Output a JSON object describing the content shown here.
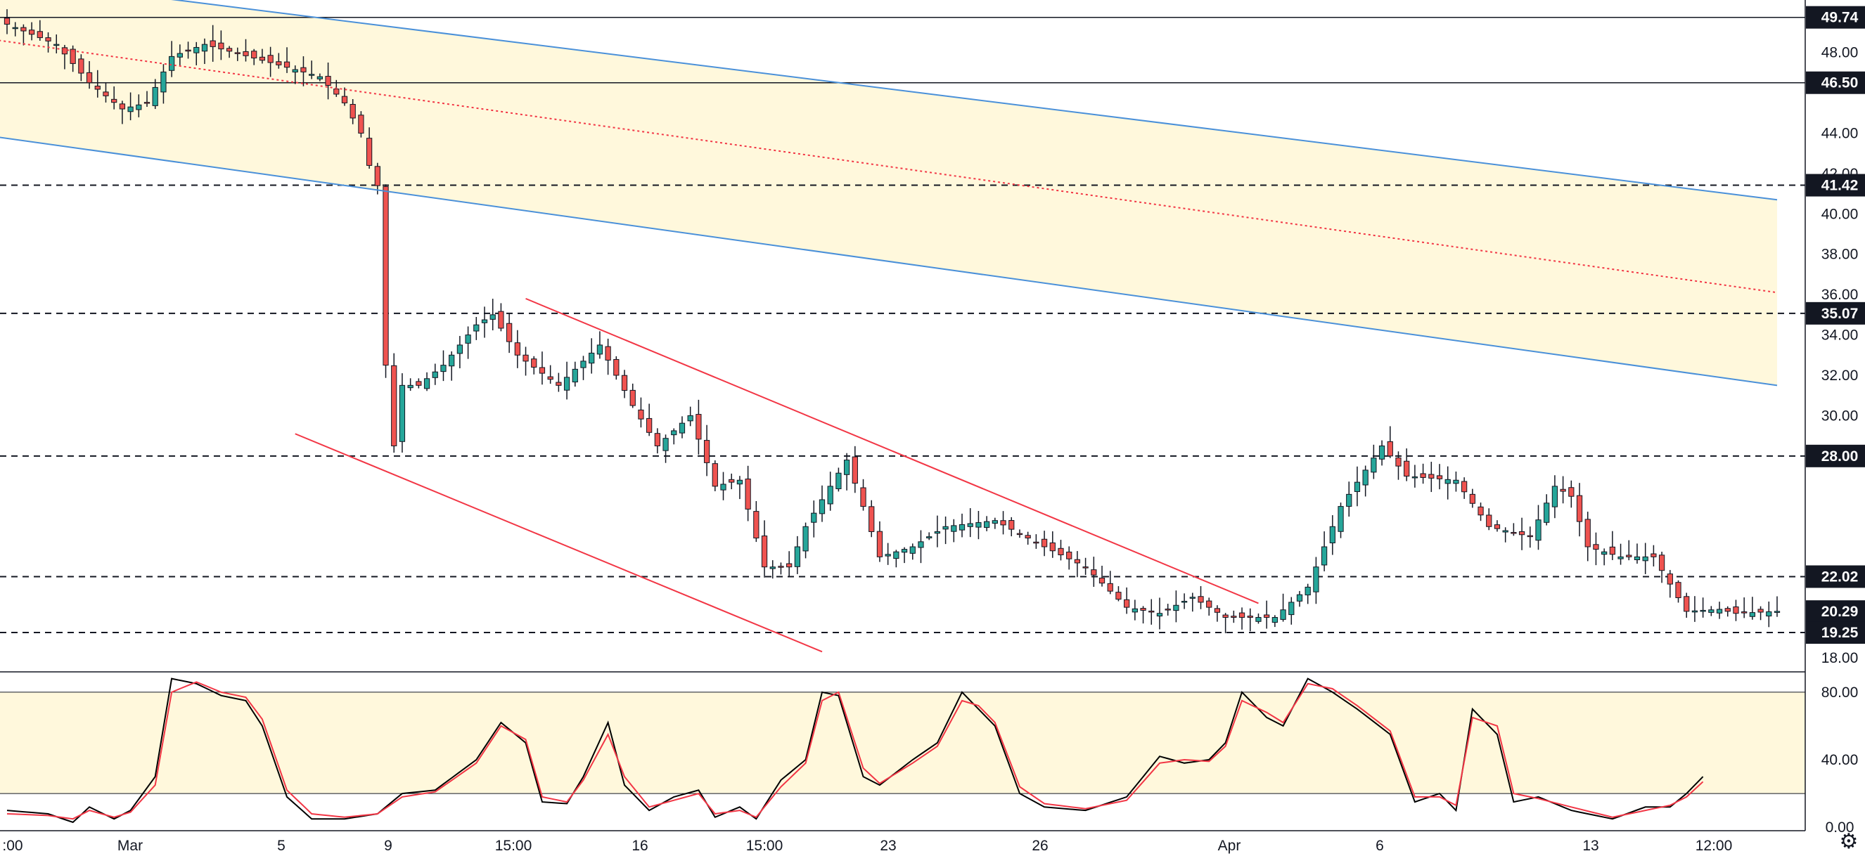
{
  "chart_data": [
    {
      "type": "candlestick",
      "title": "",
      "ylim": [
        17.3,
        50.6
      ],
      "y_ticks": [
        "18.00",
        "30.00",
        "32.00",
        "34.00",
        "36.00",
        "38.00",
        "40.00",
        "42.00",
        "44.00",
        "48.00"
      ],
      "x_ticks": [
        ":00",
        "Mar",
        "5",
        "9",
        "15:00",
        "16",
        "15:00",
        "23",
        "26",
        "Apr",
        "6",
        "13",
        "12:00"
      ],
      "n_bars": 216,
      "price_labels": [
        {
          "text": "49.74",
          "value": 49.74,
          "style": "solid"
        },
        {
          "text": "46.50",
          "value": 46.5,
          "style": "solid"
        },
        {
          "text": "41.42",
          "value": 41.42,
          "style": "dashed"
        },
        {
          "text": "35.07",
          "value": 35.07,
          "style": "dashed"
        },
        {
          "text": "28.00",
          "value": 28.0,
          "style": "dashed"
        },
        {
          "text": "22.02",
          "value": 22.02,
          "style": "dashed"
        },
        {
          "text": "20.29",
          "value": 20.29,
          "style": "last"
        },
        {
          "text": "19.25",
          "value": 19.25,
          "style": "dashed"
        }
      ],
      "horizontal_levels": [
        49.74,
        46.5,
        41.42,
        35.07,
        28.0,
        22.02,
        19.25
      ],
      "last_price": 20.29,
      "close_anchors": [
        [
          0,
          49.4
        ],
        [
          6,
          48.4
        ],
        [
          10,
          46.5
        ],
        [
          14,
          45.2
        ],
        [
          17,
          45.5
        ],
        [
          20,
          47.8
        ],
        [
          24,
          48.4
        ],
        [
          32,
          47.5
        ],
        [
          38,
          46.8
        ],
        [
          41,
          45.5
        ],
        [
          43,
          44.0
        ],
        [
          44,
          42.4
        ],
        [
          45,
          41.4
        ],
        [
          46,
          32.5
        ],
        [
          47,
          28.5
        ],
        [
          48,
          31.5
        ],
        [
          50,
          31.5
        ],
        [
          53,
          32.5
        ],
        [
          57,
          34.5
        ],
        [
          59,
          35.0
        ],
        [
          62,
          33.0
        ],
        [
          67,
          31.5
        ],
        [
          72,
          33.5
        ],
        [
          76,
          30.5
        ],
        [
          79,
          28.5
        ],
        [
          83,
          30.0
        ],
        [
          86,
          26.5
        ],
        [
          89,
          26.8
        ],
        [
          92,
          22.5
        ],
        [
          95,
          22.5
        ],
        [
          97,
          24.5
        ],
        [
          100,
          26.5
        ],
        [
          102,
          27.8
        ],
        [
          104,
          25.5
        ],
        [
          106,
          23.0
        ],
        [
          110,
          23.5
        ],
        [
          114,
          24.5
        ],
        [
          120,
          24.8
        ],
        [
          126,
          23.5
        ],
        [
          131,
          22.5
        ],
        [
          136,
          20.5
        ],
        [
          140,
          20.2
        ],
        [
          144,
          21.0
        ],
        [
          148,
          20.0
        ],
        [
          154,
          20.0
        ],
        [
          158,
          21.5
        ],
        [
          162,
          25.5
        ],
        [
          167,
          28.5
        ],
        [
          170,
          27.0
        ],
        [
          176,
          26.8
        ],
        [
          180,
          24.5
        ],
        [
          185,
          24.0
        ],
        [
          188,
          26.5
        ],
        [
          190,
          26.0
        ],
        [
          192,
          23.5
        ],
        [
          196,
          23.0
        ],
        [
          200,
          23.0
        ],
        [
          204,
          20.3
        ],
        [
          208,
          20.4
        ],
        [
          210,
          20.2
        ],
        [
          215,
          20.3
        ]
      ],
      "lines": [
        {
          "name": "channel-upper",
          "color": "#4a90d9",
          "style": "solid",
          "p1": [
            -1,
            51.7
          ],
          "p2": [
            215,
            40.7
          ]
        },
        {
          "name": "channel-lower",
          "color": "#4a90d9",
          "style": "solid",
          "p1": [
            -1,
            43.8
          ],
          "p2": [
            215,
            31.5
          ]
        },
        {
          "name": "channel-median",
          "color": "#f23645",
          "style": "dotted",
          "p1": [
            -1,
            48.6
          ],
          "p2": [
            215,
            36.1
          ]
        },
        {
          "name": "wedge-upper",
          "color": "#f23645",
          "style": "solid",
          "p1": [
            63,
            35.8
          ],
          "p2": [
            152,
            20.7
          ]
        },
        {
          "name": "wedge-lower",
          "color": "#f23645",
          "style": "solid",
          "p1": [
            35,
            29.1
          ],
          "p2": [
            99,
            18.3
          ]
        }
      ],
      "colors": {
        "up": "#26a69a",
        "down": "#ef5350",
        "zone": "#fff8dc",
        "channel": "#4a90d9",
        "trend": "#f23645"
      }
    },
    {
      "type": "line",
      "title": "",
      "ylim": [
        -2,
        92
      ],
      "y_ticks": [
        "0.00",
        "40.00",
        "80.00"
      ],
      "bands": [
        20,
        80
      ],
      "series": [
        {
          "color": "#000000",
          "anchors": [
            [
              0,
              10
            ],
            [
              5,
              8
            ],
            [
              8,
              3
            ],
            [
              10,
              12
            ],
            [
              13,
              5
            ],
            [
              15,
              10
            ],
            [
              18,
              30
            ],
            [
              20,
              88
            ],
            [
              23,
              85
            ],
            [
              26,
              78
            ],
            [
              29,
              75
            ],
            [
              31,
              60
            ],
            [
              34,
              18
            ],
            [
              37,
              5
            ],
            [
              41,
              5
            ],
            [
              45,
              8
            ],
            [
              48,
              20
            ],
            [
              52,
              22
            ],
            [
              57,
              40
            ],
            [
              60,
              62
            ],
            [
              63,
              50
            ],
            [
              65,
              15
            ],
            [
              68,
              14
            ],
            [
              70,
              30
            ],
            [
              73,
              62
            ],
            [
              75,
              25
            ],
            [
              78,
              10
            ],
            [
              81,
              18
            ],
            [
              84,
              22
            ],
            [
              86,
              6
            ],
            [
              89,
              12
            ],
            [
              91,
              5
            ],
            [
              94,
              28
            ],
            [
              97,
              40
            ],
            [
              99,
              80
            ],
            [
              101,
              78
            ],
            [
              104,
              30
            ],
            [
              106,
              25
            ],
            [
              110,
              40
            ],
            [
              113,
              50
            ],
            [
              116,
              80
            ],
            [
              118,
              70
            ],
            [
              120,
              60
            ],
            [
              123,
              20
            ],
            [
              126,
              12
            ],
            [
              131,
              10
            ],
            [
              136,
              18
            ],
            [
              140,
              42
            ],
            [
              143,
              38
            ],
            [
              146,
              40
            ],
            [
              148,
              50
            ],
            [
              150,
              80
            ],
            [
              153,
              65
            ],
            [
              155,
              60
            ],
            [
              158,
              88
            ],
            [
              161,
              80
            ],
            [
              164,
              70
            ],
            [
              168,
              55
            ],
            [
              171,
              15
            ],
            [
              174,
              20
            ],
            [
              176,
              10
            ],
            [
              178,
              70
            ],
            [
              181,
              55
            ],
            [
              183,
              15
            ],
            [
              186,
              18
            ],
            [
              190,
              10
            ],
            [
              195,
              5
            ],
            [
              199,
              12
            ],
            [
              202,
              12
            ],
            [
              204,
              20
            ],
            [
              206,
              30
            ]
          ]
        },
        {
          "color": "#f23645",
          "anchors": [
            [
              0,
              8
            ],
            [
              5,
              7
            ],
            [
              8,
              5
            ],
            [
              10,
              10
            ],
            [
              13,
              6
            ],
            [
              15,
              9
            ],
            [
              18,
              25
            ],
            [
              20,
              80
            ],
            [
              23,
              86
            ],
            [
              26,
              80
            ],
            [
              29,
              77
            ],
            [
              31,
              64
            ],
            [
              34,
              22
            ],
            [
              37,
              8
            ],
            [
              41,
              6
            ],
            [
              45,
              8
            ],
            [
              48,
              18
            ],
            [
              52,
              21
            ],
            [
              57,
              38
            ],
            [
              60,
              60
            ],
            [
              63,
              52
            ],
            [
              65,
              18
            ],
            [
              68,
              15
            ],
            [
              70,
              28
            ],
            [
              73,
              55
            ],
            [
              75,
              30
            ],
            [
              78,
              12
            ],
            [
              81,
              16
            ],
            [
              84,
              20
            ],
            [
              86,
              8
            ],
            [
              89,
              10
            ],
            [
              91,
              6
            ],
            [
              94,
              24
            ],
            [
              97,
              38
            ],
            [
              99,
              75
            ],
            [
              101,
              80
            ],
            [
              104,
              35
            ],
            [
              106,
              26
            ],
            [
              110,
              38
            ],
            [
              113,
              48
            ],
            [
              116,
              75
            ],
            [
              118,
              72
            ],
            [
              120,
              62
            ],
            [
              123,
              24
            ],
            [
              126,
              14
            ],
            [
              131,
              11
            ],
            [
              136,
              16
            ],
            [
              140,
              38
            ],
            [
              143,
              40
            ],
            [
              146,
              39
            ],
            [
              148,
              48
            ],
            [
              150,
              75
            ],
            [
              153,
              68
            ],
            [
              155,
              62
            ],
            [
              158,
              85
            ],
            [
              161,
              82
            ],
            [
              164,
              72
            ],
            [
              168,
              57
            ],
            [
              171,
              18
            ],
            [
              174,
              18
            ],
            [
              176,
              13
            ],
            [
              178,
              65
            ],
            [
              181,
              60
            ],
            [
              183,
              20
            ],
            [
              186,
              17
            ],
            [
              190,
              12
            ],
            [
              195,
              6
            ],
            [
              199,
              10
            ],
            [
              202,
              13
            ],
            [
              204,
              18
            ],
            [
              206,
              27
            ]
          ]
        }
      ]
    }
  ],
  "icons": {
    "settings": "gear-icon"
  }
}
